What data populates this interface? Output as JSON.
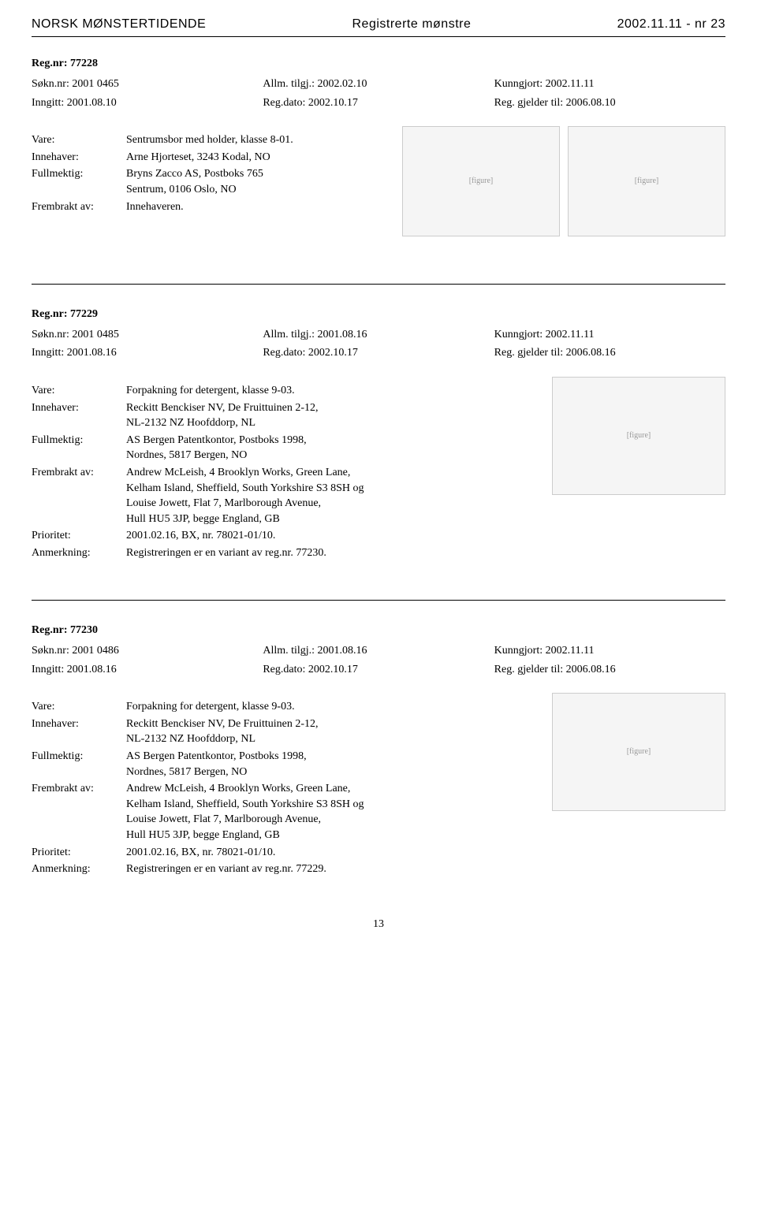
{
  "header": {
    "left": "NORSK MØNSTERTIDENDE",
    "center": "Registrerte mønstre",
    "right": "2002.11.11 - nr 23"
  },
  "page_number": "13",
  "entries": [
    {
      "reg_nr_label": "Reg.nr:",
      "reg_nr": "77228",
      "sokn_nr_label": "Søkn.nr:",
      "sokn_nr": "2001 0465",
      "allm_label": "Allm. tilgj.:",
      "allm": "2002.02.10",
      "kunngjort_label": "Kunngjort:",
      "kunngjort": "2002.11.11",
      "inngitt_label": "Inngitt:",
      "inngitt": "2001.08.10",
      "regdato_label": "Reg.dato:",
      "regdato": "2002.10.17",
      "gjelder_label": "Reg. gjelder til:",
      "gjelder": "2006.08.10",
      "fields": [
        {
          "label": "Vare:",
          "value": "Sentrumsbor med holder, klasse 8-01."
        },
        {
          "label": "Innehaver:",
          "value": "Arne Hjorteset, 3243 Kodal, NO"
        },
        {
          "label": "Fullmektig:",
          "value": "Bryns Zacco AS, Postboks 765\nSentrum, 0106 Oslo, NO"
        },
        {
          "label": "Frembrakt av:",
          "value": "Innehaveren."
        }
      ],
      "image_layout": "row"
    },
    {
      "reg_nr_label": "Reg.nr:",
      "reg_nr": "77229",
      "sokn_nr_label": "Søkn.nr:",
      "sokn_nr": "2001 0485",
      "allm_label": "Allm. tilgj.:",
      "allm": "2001.08.16",
      "kunngjort_label": "Kunngjort:",
      "kunngjort": "2002.11.11",
      "inngitt_label": "Inngitt:",
      "inngitt": "2001.08.16",
      "regdato_label": "Reg.dato:",
      "regdato": "2002.10.17",
      "gjelder_label": "Reg. gjelder til:",
      "gjelder": "2006.08.16",
      "fields": [
        {
          "label": "Vare:",
          "value": "Forpakning for detergent, klasse 9-03."
        },
        {
          "label": "Innehaver:",
          "value": "Reckitt Benckiser NV, De Fruittuinen 2-12,\nNL-2132 NZ Hoofddorp, NL"
        },
        {
          "label": "Fullmektig:",
          "value": "AS Bergen Patentkontor, Postboks 1998,\nNordnes, 5817 Bergen, NO"
        },
        {
          "label": "Frembrakt av:",
          "value": "Andrew McLeish, 4 Brooklyn Works, Green Lane,\nKelham Island, Sheffield, South Yorkshire S3 8SH og\nLouise Jowett, Flat 7, Marlborough Avenue,\nHull HU5 3JP, begge England, GB"
        },
        {
          "label": "Prioritet:",
          "value": "2001.02.16, BX, nr. 78021-01/10."
        },
        {
          "label": "Anmerkning:",
          "value": "Registreringen er en variant av reg.nr. 77230."
        }
      ],
      "image_layout": "side"
    },
    {
      "reg_nr_label": "Reg.nr:",
      "reg_nr": "77230",
      "sokn_nr_label": "Søkn.nr:",
      "sokn_nr": "2001 0486",
      "allm_label": "Allm. tilgj.:",
      "allm": "2001.08.16",
      "kunngjort_label": "Kunngjort:",
      "kunngjort": "2002.11.11",
      "inngitt_label": "Inngitt:",
      "inngitt": "2001.08.16",
      "regdato_label": "Reg.dato:",
      "regdato": "2002.10.17",
      "gjelder_label": "Reg. gjelder til:",
      "gjelder": "2006.08.16",
      "fields": [
        {
          "label": "Vare:",
          "value": "Forpakning for detergent, klasse 9-03."
        },
        {
          "label": "Innehaver:",
          "value": "Reckitt Benckiser NV, De Fruittuinen 2-12,\nNL-2132 NZ Hoofddorp, NL"
        },
        {
          "label": "Fullmektig:",
          "value": "AS Bergen Patentkontor, Postboks 1998,\nNordnes, 5817 Bergen, NO"
        },
        {
          "label": "Frembrakt av:",
          "value": "Andrew McLeish, 4 Brooklyn Works, Green Lane,\nKelham Island, Sheffield, South Yorkshire S3 8SH og\nLouise Jowett, Flat 7, Marlborough Avenue,\nHull HU5 3JP, begge England, GB"
        },
        {
          "label": "Prioritet:",
          "value": "2001.02.16, BX, nr. 78021-01/10."
        },
        {
          "label": "Anmerkning:",
          "value": "Registreringen er en variant av reg.nr. 77229."
        }
      ],
      "image_layout": "side"
    }
  ]
}
